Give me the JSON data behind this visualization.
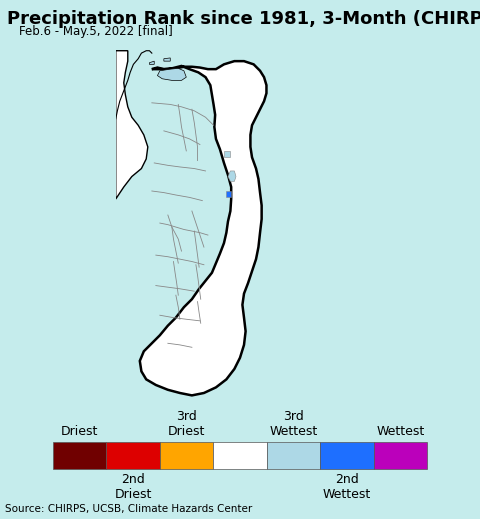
{
  "title": "Precipitation Rank since 1981, 3-Month (CHIRPS)",
  "subtitle": "Feb.6 - May.5, 2022 [final]",
  "source": "Source: CHIRPS, UCSB, Climate Hazards Center",
  "ocean_color": "#c5ecec",
  "land_fill": "#ffffff",
  "outer_border_color": "#000000",
  "inner_border_color": "#888888",
  "legend_colors": [
    "#700000",
    "#dd0000",
    "#ffa500",
    "#ffffff",
    "#add8e6",
    "#1e6fff",
    "#bb00bb"
  ],
  "legend_top_labels": [
    "Driest",
    "",
    "3rd\nDriest",
    "",
    "3rd\nWettest",
    "",
    "Wettest"
  ],
  "legend_bot_labels": [
    "",
    "2nd\nDriest",
    "",
    "",
    "",
    "2nd\nWettest",
    ""
  ],
  "title_fontsize": 13,
  "subtitle_fontsize": 8.5,
  "source_fontsize": 7.5,
  "legend_fontsize": 9,
  "map_xlim": [
    79.4,
    82.5
  ],
  "map_ylim": [
    5.6,
    10.1
  ]
}
